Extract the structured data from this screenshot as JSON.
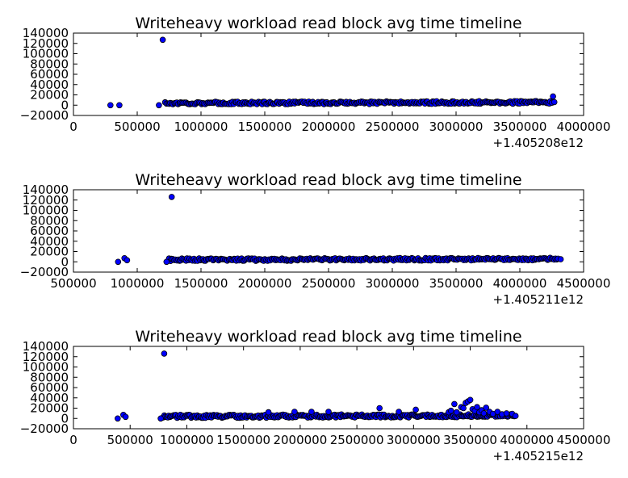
{
  "figure": {
    "title": "Writeheavy workload read block avg time timeline"
  },
  "chart_data": [
    {
      "type": "scatter",
      "title": "Writeheavy workload read block avg time timeline",
      "xlabel": "",
      "ylabel": "",
      "x_offset_label": "+1.405208e12",
      "xlim": [
        0,
        4000000
      ],
      "ylim": [
        -20000,
        140000
      ],
      "x_ticks": [
        "0",
        "500000",
        "1000000",
        "1500000",
        "2000000",
        "2500000",
        "3000000",
        "3500000",
        "4000000"
      ],
      "y_ticks": [
        "−20000",
        "0",
        "20000",
        "40000",
        "60000",
        "80000",
        "100000",
        "120000",
        "140000"
      ],
      "grid": false,
      "marker_color": "#0000ff",
      "series": [
        {
          "points": [
            [
              290000,
              0
            ],
            [
              360000,
              0
            ],
            [
              670000,
              0
            ],
            [
              700000,
              127000
            ],
            [
              3760000,
              17000
            ],
            [
              3770000,
              6000
            ]
          ],
          "band": {
            "x_start": 720000,
            "x_end": 3750000,
            "y_base": 4000,
            "y_spread": 2500,
            "count": 300
          }
        }
      ]
    },
    {
      "type": "scatter",
      "title": "Writeheavy workload read block avg time timeline",
      "xlabel": "",
      "ylabel": "",
      "x_offset_label": "+1.405211e12",
      "xlim": [
        500000,
        4500000
      ],
      "ylim": [
        -20000,
        140000
      ],
      "x_ticks": [
        "500000",
        "1000000",
        "1500000",
        "2000000",
        "2500000",
        "3000000",
        "3500000",
        "4000000",
        "4500000"
      ],
      "y_ticks": [
        "−20000",
        "0",
        "20000",
        "40000",
        "60000",
        "80000",
        "100000",
        "120000",
        "140000"
      ],
      "grid": false,
      "marker_color": "#0000ff",
      "series": [
        {
          "points": [
            [
              850000,
              0
            ],
            [
              900000,
              7000
            ],
            [
              920000,
              3000
            ],
            [
              1230000,
              0
            ],
            [
              1270000,
              126000
            ],
            [
              4300000,
              6000
            ],
            [
              4320000,
              5000
            ]
          ],
          "band": {
            "x_start": 1250000,
            "x_end": 4290000,
            "y_base": 4000,
            "y_spread": 2500,
            "count": 300
          }
        }
      ]
    },
    {
      "type": "scatter",
      "title": "Writeheavy workload read block avg time timeline",
      "xlabel": "",
      "ylabel": "",
      "x_offset_label": "+1.405215e12",
      "xlim": [
        0,
        4500000
      ],
      "ylim": [
        -20000,
        140000
      ],
      "x_ticks": [
        "0",
        "500000",
        "1000000",
        "1500000",
        "2000000",
        "2500000",
        "3000000",
        "3500000",
        "4000000",
        "4500000"
      ],
      "y_ticks": [
        "−20000",
        "0",
        "20000",
        "40000",
        "60000",
        "80000",
        "100000",
        "120000",
        "140000"
      ],
      "grid": false,
      "marker_color": "#0000ff",
      "series": [
        {
          "points": [
            [
              390000,
              0
            ],
            [
              440000,
              7000
            ],
            [
              460000,
              3000
            ],
            [
              770000,
              0
            ],
            [
              800000,
              126000
            ],
            [
              1720000,
              12000
            ],
            [
              1950000,
              13000
            ],
            [
              2100000,
              13000
            ],
            [
              2250000,
              13000
            ],
            [
              2700000,
              20000
            ],
            [
              2870000,
              13000
            ],
            [
              3020000,
              17000
            ],
            [
              3310000,
              12000
            ],
            [
              3330000,
              15000
            ],
            [
              3360000,
              28000
            ],
            [
              3380000,
              12000
            ],
            [
              3420000,
              22000
            ],
            [
              3440000,
              20000
            ],
            [
              3460000,
              30000
            ],
            [
              3480000,
              33000
            ],
            [
              3500000,
              36000
            ],
            [
              3520000,
              18000
            ],
            [
              3540000,
              15000
            ],
            [
              3560000,
              22000
            ],
            [
              3580000,
              12000
            ],
            [
              3600000,
              16000
            ],
            [
              3620000,
              10000
            ],
            [
              3640000,
              21000
            ],
            [
              3670000,
              13000
            ],
            [
              3700000,
              9000
            ],
            [
              3740000,
              13000
            ],
            [
              3780000,
              8000
            ],
            [
              3820000,
              10000
            ],
            [
              3870000,
              9000
            ],
            [
              3900000,
              5000
            ]
          ],
          "band": {
            "x_start": 790000,
            "x_end": 3890000,
            "y_base": 4000,
            "y_spread": 3000,
            "count": 300
          }
        }
      ]
    }
  ]
}
